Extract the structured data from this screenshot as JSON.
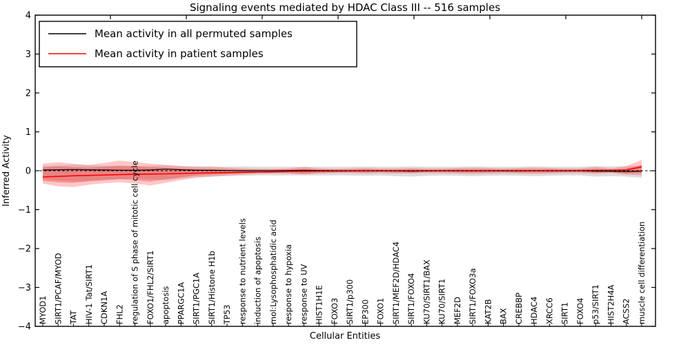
{
  "title": "Signaling events mediated by HDAC Class III -- 516 samples",
  "legend": {
    "items": [
      {
        "label": "Mean activity in all permuted samples",
        "color": "#000000"
      },
      {
        "label": "Mean activity in patient samples",
        "color": "#ff0000"
      }
    ]
  },
  "colors": {
    "permuted_line": "#000000",
    "patient_line": "#ff0000",
    "permuted_band": "#aaaaaa",
    "patient_band_outer": "#ff4444",
    "patient_band_inner": "#ee2222",
    "zero_line": "#000000"
  },
  "chart_data": {
    "type": "line",
    "title": "Signaling events mediated by HDAC Class III -- 516 samples",
    "xlabel": "Cellular Entities",
    "ylabel": "Inferred Activity",
    "ylim": [
      -4,
      4
    ],
    "yticks": [
      4,
      3,
      2,
      1,
      0,
      -1,
      -2,
      -3,
      -4
    ],
    "ytick_labels": [
      "4",
      "3",
      "2",
      "1",
      "0",
      "−1",
      "−2",
      "−3",
      "−4"
    ],
    "grid": false,
    "legend_position": "upper left",
    "categories": [
      "MYOD1",
      "SIRT1/PCAF/MYOD",
      "TAT",
      "HIV-1 Tat/SIRT1",
      "CDKN1A",
      "FHL2",
      "regulation of S phase of mitotic cell cycle",
      "FOXO1/FHL2/SIRT1",
      "apoptosis",
      "PPARGC1A",
      "SIRT1/PGC1A",
      "SIRT1/Histone H1b",
      "TP53",
      "response to nutrient levels",
      "induction of apoptosis",
      "mol:Lysophosphatidic acid",
      "response to hypoxia",
      "response to UV",
      "HIST1H1E",
      "FOXO3",
      "SIRT1/p300",
      "EP300",
      "FOXO1",
      "SIRT1/MEF2D/HDAC4",
      "SIRT1/FOXO4",
      "KU70/SIRT1/BAX",
      "KU70/SIRT1",
      "MEF2D",
      "SIRT1/FOXO3a",
      "KAT2B",
      "BAX",
      "CREBBP",
      "HDAC4",
      "XRCC6",
      "SIRT1",
      "FOXO4",
      "p53/SIRT1",
      "HIST2H4A",
      "ACSS2",
      "muscle cell differentiation"
    ],
    "series": [
      {
        "name": "Mean activity in all permuted samples",
        "color": "#000000",
        "style": "solid",
        "values": [
          0.02,
          0.025,
          0.03,
          0.025,
          0.02,
          0.015,
          0.01,
          0.02,
          0.04,
          0.025,
          0.015,
          0.01,
          0.005,
          0.0,
          0.0,
          0.0,
          0.005,
          0.01,
          0.005,
          0.0,
          0.0,
          0.0,
          0.0,
          -0.005,
          -0.01,
          -0.005,
          0.0,
          0.0,
          -0.005,
          0.0,
          0.0,
          -0.005,
          0.0,
          0.0,
          0.0,
          0.0,
          -0.01,
          -0.015,
          -0.02,
          -0.01
        ]
      },
      {
        "name": "Mean activity in patient samples",
        "color": "#ff0000",
        "style": "solid",
        "values": [
          -0.16,
          -0.145,
          -0.13,
          -0.12,
          -0.11,
          -0.1,
          -0.09,
          -0.085,
          -0.08,
          -0.07,
          -0.06,
          -0.055,
          -0.05,
          -0.04,
          -0.035,
          -0.03,
          -0.02,
          -0.015,
          -0.01,
          -0.01,
          -0.005,
          0.0,
          0.0,
          0.0,
          0.0,
          0.0,
          0.0,
          0.0,
          0.0,
          0.0,
          0.0,
          0.0,
          0.0,
          0.0,
          0.0,
          0.005,
          0.01,
          0.015,
          0.02,
          0.1
        ]
      }
    ],
    "bands": [
      {
        "name": "permuted-spread-band",
        "color": "#aaaaaa",
        "opacity": 0.4,
        "upper": [
          0.12,
          0.14,
          0.15,
          0.14,
          0.13,
          0.13,
          0.12,
          0.13,
          0.14,
          0.12,
          0.11,
          0.11,
          0.1,
          0.11,
          0.1,
          0.1,
          0.1,
          0.1,
          0.1,
          0.1,
          0.1,
          0.11,
          0.1,
          0.1,
          0.11,
          0.1,
          0.1,
          0.1,
          0.11,
          0.1,
          0.1,
          0.1,
          0.11,
          0.1,
          0.1,
          0.1,
          0.12,
          0.11,
          0.12,
          0.13
        ],
        "lower": [
          -0.22,
          -0.25,
          -0.28,
          -0.26,
          -0.24,
          -0.22,
          -0.2,
          -0.22,
          -0.24,
          -0.2,
          -0.16,
          -0.15,
          -0.14,
          -0.13,
          -0.12,
          -0.12,
          -0.12,
          -0.12,
          -0.12,
          -0.12,
          -0.12,
          -0.13,
          -0.12,
          -0.14,
          -0.15,
          -0.13,
          -0.12,
          -0.13,
          -0.14,
          -0.13,
          -0.12,
          -0.13,
          -0.14,
          -0.13,
          -0.12,
          -0.12,
          -0.15,
          -0.14,
          -0.15,
          -0.18
        ]
      },
      {
        "name": "patient-spread-band-outer",
        "color": "#ff4444",
        "opacity": 0.3,
        "upper": [
          0.18,
          0.22,
          0.18,
          0.15,
          0.2,
          0.26,
          0.22,
          0.18,
          0.15,
          0.12,
          0.1,
          0.1,
          0.08,
          0.06,
          0.05,
          0.05,
          0.06,
          0.1,
          0.06,
          0.05,
          0.06,
          0.07,
          0.06,
          0.06,
          0.07,
          0.06,
          0.06,
          0.07,
          0.08,
          0.07,
          0.06,
          0.07,
          0.08,
          0.07,
          0.06,
          0.06,
          0.1,
          0.06,
          0.12,
          0.28
        ],
        "lower": [
          -0.33,
          -0.4,
          -0.42,
          -0.36,
          -0.32,
          -0.3,
          -0.33,
          -0.38,
          -0.31,
          -0.24,
          -0.18,
          -0.15,
          -0.12,
          -0.1,
          -0.08,
          -0.07,
          -0.08,
          -0.1,
          -0.07,
          -0.06,
          -0.06,
          -0.07,
          -0.06,
          -0.07,
          -0.07,
          -0.06,
          -0.06,
          -0.07,
          -0.08,
          -0.07,
          -0.06,
          -0.07,
          -0.08,
          -0.07,
          -0.06,
          -0.06,
          -0.08,
          -0.06,
          -0.1,
          -0.12
        ]
      },
      {
        "name": "patient-spread-band-inner",
        "color": "#ee2222",
        "opacity": 0.3,
        "upper": [
          0.09,
          0.11,
          0.09,
          0.08,
          0.1,
          0.13,
          0.11,
          0.09,
          0.08,
          0.06,
          0.05,
          0.05,
          0.04,
          0.03,
          0.03,
          0.03,
          0.03,
          0.05,
          0.03,
          0.03,
          0.03,
          0.04,
          0.03,
          0.03,
          0.04,
          0.03,
          0.03,
          0.04,
          0.04,
          0.04,
          0.03,
          0.04,
          0.04,
          0.04,
          0.03,
          0.03,
          0.05,
          0.03,
          0.06,
          0.15
        ],
        "lower": [
          -0.26,
          -0.3,
          -0.31,
          -0.27,
          -0.24,
          -0.22,
          -0.24,
          -0.28,
          -0.22,
          -0.17,
          -0.12,
          -0.1,
          -0.08,
          -0.07,
          -0.05,
          -0.05,
          -0.05,
          -0.07,
          -0.05,
          -0.04,
          -0.04,
          -0.05,
          -0.04,
          -0.05,
          -0.05,
          -0.04,
          -0.04,
          -0.05,
          -0.05,
          -0.05,
          -0.04,
          -0.05,
          -0.05,
          -0.05,
          -0.04,
          -0.04,
          -0.05,
          -0.04,
          -0.07,
          -0.06
        ]
      }
    ],
    "zero_line": 0
  }
}
